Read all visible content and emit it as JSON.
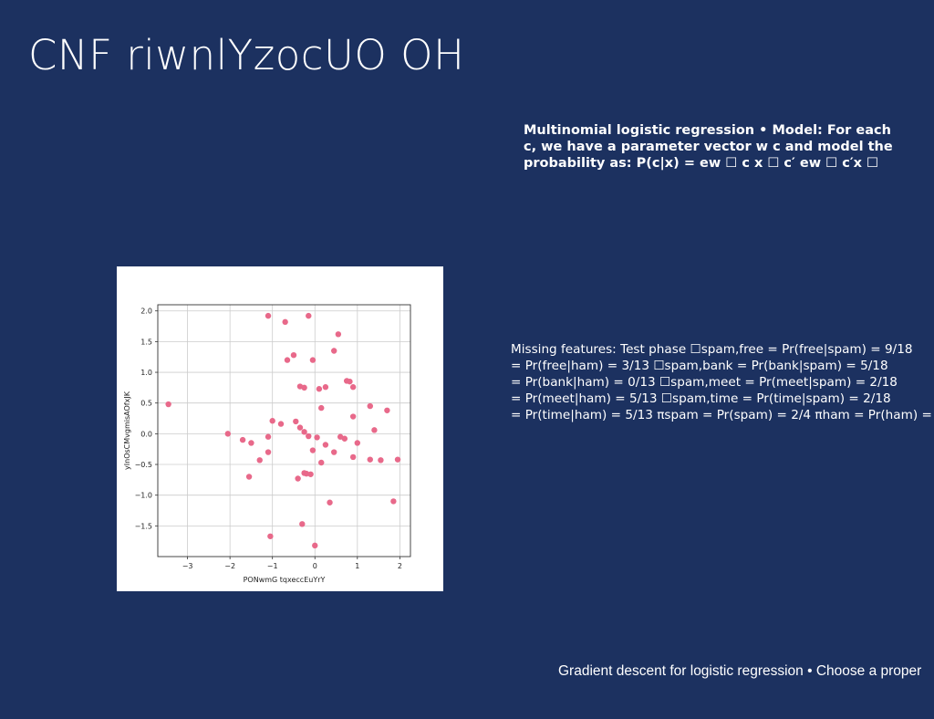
{
  "slide": {
    "title": "CNF riwnlYzocUO OH",
    "multinomial_lines": [
      "Multinomial logistic regression • Model: For each",
      "c, we have a parameter vector w c and model the",
      "probability as: P(c|x) = ew ☐ c x ☐ c′ ew ☐ c′x ☐"
    ],
    "missing_lines": [
      "Missing features: Test phase ☐spam,free = Pr(free|spam) = 9/18",
      "= Pr(free|ham) = 3/13 ☐spam,bank = Pr(bank|spam) = 5/18",
      "= Pr(bank|ham) = 0/13 ☐spam,meet = Pr(meet|spam) = 2/18",
      "= Pr(meet|ham) = 5/13 ☐spam,time = Pr(time|spam) = 2/18",
      "= Pr(time|ham) = 5/13 πspam = Pr(spam) = 2/4 πham = Pr(ham) ="
    ],
    "gradient_text": "Gradient descent for logistic regression • Choose a proper"
  },
  "colors": {
    "background": "#1c3160",
    "text": "#ffffff",
    "point": "#e8698a",
    "grid": "#cccccc"
  },
  "chart_data": {
    "type": "scatter",
    "title": "",
    "xlabel": "PONwmG tqxeccEuYrY",
    "ylabel": "yInOsCMvgmisAOfxJK",
    "xlim": [
      -3.7,
      2.25
    ],
    "ylim": [
      -2.0,
      2.1
    ],
    "xticks": [
      -3,
      -2,
      -1,
      0,
      1,
      2
    ],
    "xtick_labels": [
      "−3",
      "−2",
      "−1",
      "0",
      "1",
      "2"
    ],
    "yticks": [
      2.0,
      1.5,
      1.0,
      0.5,
      0.0,
      -0.5,
      -1.0,
      -1.5
    ],
    "ytick_labels": [
      "2.0",
      "1.5",
      "1.0",
      "0.5",
      "0.0",
      "−0.5",
      "−1.0",
      "−1.5"
    ],
    "grid": true,
    "points": [
      [
        -1.1,
        1.92
      ],
      [
        -0.7,
        1.82
      ],
      [
        -0.15,
        1.92
      ],
      [
        0.55,
        1.62
      ],
      [
        -0.5,
        1.28
      ],
      [
        -0.65,
        1.2
      ],
      [
        -0.05,
        1.2
      ],
      [
        0.45,
        1.35
      ],
      [
        0.75,
        0.86
      ],
      [
        0.82,
        0.85
      ],
      [
        0.9,
        0.76
      ],
      [
        -0.35,
        0.77
      ],
      [
        -0.25,
        0.75
      ],
      [
        0.1,
        0.73
      ],
      [
        0.25,
        0.76
      ],
      [
        -3.45,
        0.48
      ],
      [
        0.15,
        0.42
      ],
      [
        1.3,
        0.45
      ],
      [
        1.7,
        0.38
      ],
      [
        0.9,
        0.28
      ],
      [
        -1.0,
        0.21
      ],
      [
        -0.8,
        0.16
      ],
      [
        -0.45,
        0.2
      ],
      [
        -0.35,
        0.1
      ],
      [
        -0.25,
        0.03
      ],
      [
        -0.15,
        -0.04
      ],
      [
        0.05,
        -0.06
      ],
      [
        0.6,
        -0.05
      ],
      [
        0.7,
        -0.08
      ],
      [
        1.4,
        0.06
      ],
      [
        -2.05,
        0.0
      ],
      [
        -1.1,
        -0.05
      ],
      [
        -1.7,
        -0.1
      ],
      [
        -1.5,
        -0.15
      ],
      [
        0.25,
        -0.18
      ],
      [
        1.0,
        -0.15
      ],
      [
        -1.1,
        -0.3
      ],
      [
        -0.05,
        -0.27
      ],
      [
        0.45,
        -0.3
      ],
      [
        0.9,
        -0.38
      ],
      [
        1.3,
        -0.42
      ],
      [
        1.55,
        -0.43
      ],
      [
        1.95,
        -0.42
      ],
      [
        -1.3,
        -0.43
      ],
      [
        0.15,
        -0.47
      ],
      [
        -1.55,
        -0.7
      ],
      [
        -0.4,
        -0.73
      ],
      [
        -0.2,
        -0.65
      ],
      [
        -0.1,
        -0.66
      ],
      [
        -0.25,
        -0.64
      ],
      [
        0.35,
        -1.12
      ],
      [
        1.85,
        -1.1
      ],
      [
        -1.05,
        -1.67
      ],
      [
        -0.3,
        -1.47
      ],
      [
        0.0,
        -1.82
      ]
    ]
  }
}
